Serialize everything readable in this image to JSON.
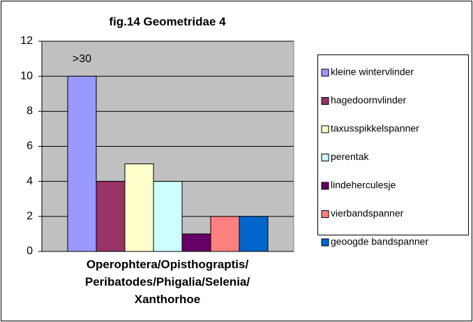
{
  "chart_data": {
    "type": "bar",
    "title": "fig.14  Geometridae  4",
    "categories": [
      "Operophtera/Opisthograptis/Peribatodes/Phigalia/Selenia/Xanthorhoe"
    ],
    "series": [
      {
        "name": "kleine wintervlinder",
        "color": "#9999ff",
        "values": [
          10
        ]
      },
      {
        "name": "hagedoornvlinder",
        "color": "#993366",
        "values": [
          4
        ]
      },
      {
        "name": "taxusspikkelspanner",
        "color": "#ffffcc",
        "values": [
          5
        ]
      },
      {
        "name": "perentak",
        "color": "#ccffff",
        "values": [
          4
        ]
      },
      {
        "name": "lindeherculesje",
        "color": "#660066",
        "values": [
          1
        ]
      },
      {
        "name": "vierbandspanner",
        "color": "#ff8080",
        "values": [
          2
        ]
      },
      {
        "name": "geoogde bandspanner",
        "color": "#0066cc",
        "values": [
          2
        ]
      }
    ],
    "annotation": ">30",
    "ylim": [
      0,
      12
    ],
    "yticks": [
      0,
      2,
      4,
      6,
      8,
      10,
      12
    ],
    "grid": true,
    "legend": "right"
  }
}
